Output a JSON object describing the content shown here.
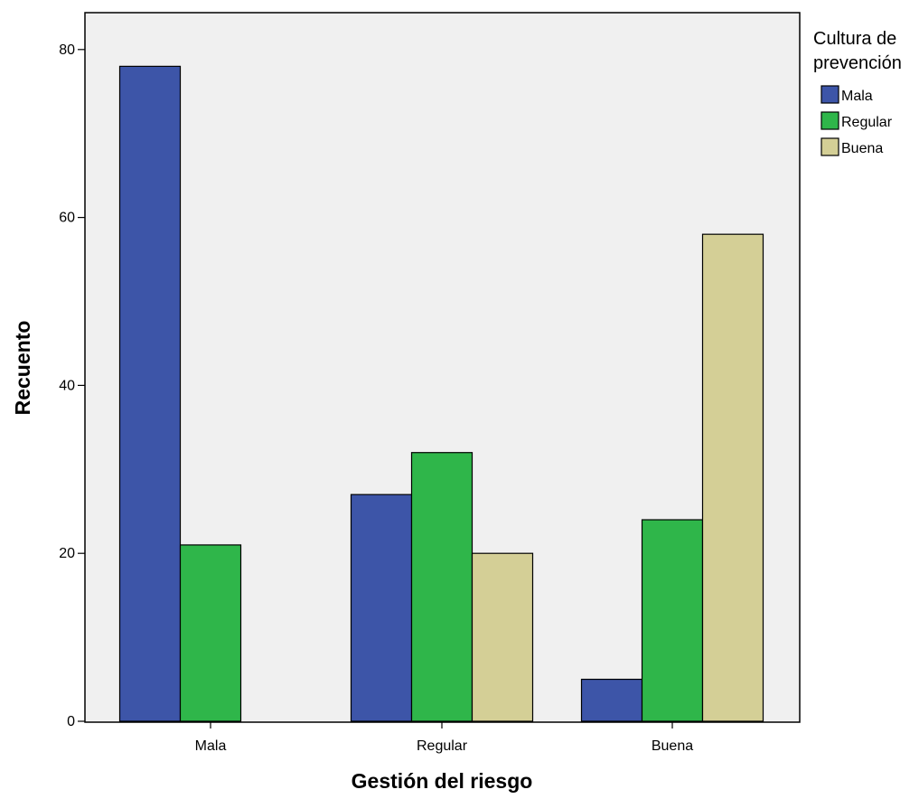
{
  "chart_data": {
    "type": "bar",
    "categories": [
      "Mala",
      "Regular",
      "Buena"
    ],
    "series": [
      {
        "name": "Mala",
        "values": [
          78,
          27,
          5
        ],
        "color": "#3d55a8"
      },
      {
        "name": "Regular",
        "values": [
          21,
          32,
          24
        ],
        "color": "#2fb64a"
      },
      {
        "name": "Buena",
        "values": [
          0,
          20,
          58
        ],
        "color": "#d4cf96"
      }
    ],
    "xlabel": "Gestión del riesgo",
    "ylabel": "Recuento",
    "ylim": [
      0,
      85
    ],
    "yticks": [
      0,
      20,
      40,
      60,
      80
    ],
    "legend": {
      "title_lines": [
        "Cultura de",
        "prevención"
      ],
      "placement": "top-right outside"
    },
    "grid": false,
    "plot_background": "#f0f0f0"
  }
}
